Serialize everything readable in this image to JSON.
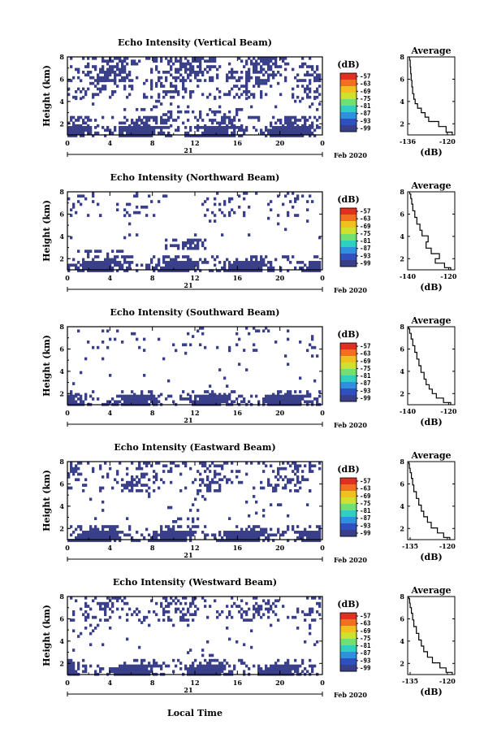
{
  "figure": {
    "xlabel": "Local Time",
    "colorbar_unit": "(dB)",
    "colorbar_ticks": [
      "-57",
      "-63",
      "-69",
      "-75",
      "-81",
      "-87",
      "-93",
      "-99"
    ],
    "colorbar_colors": [
      "#e03020",
      "#f07020",
      "#f0c020",
      "#d0e030",
      "#70e070",
      "#30d0c0",
      "#3090e0",
      "#3050c0",
      "#3a3f8a"
    ],
    "date_text": "Feb 2020",
    "day_label": "21",
    "profile_title": "Average",
    "profile_xlabel": "(dB)",
    "echo_color": "#3a3f8a"
  },
  "chart_data": [
    {
      "type": "heatmap",
      "title": "Echo Intensity (Vertical Beam)",
      "ylabel": "Height (km)",
      "xlim": [
        0,
        24
      ],
      "ylim": [
        1,
        8
      ],
      "xticks": [
        "0",
        "4",
        "8",
        "12",
        "16",
        "20",
        "0"
      ],
      "yticks": [
        "2",
        "4",
        "6",
        "8"
      ],
      "layers": [
        {
          "h0": 1.0,
          "h1": 1.8,
          "fill": 0.93
        },
        {
          "h0": 1.8,
          "h1": 2.2,
          "fill": 0.45
        },
        {
          "h0": 2.4,
          "h1": 2.7,
          "fill": 0.55,
          "t0": 0,
          "t1": 24
        },
        {
          "h0": 2.7,
          "h1": 3.2,
          "fill": 0.45,
          "t0": 9,
          "t1": 16
        },
        {
          "h0": 3.2,
          "h1": 4.4,
          "fill": 0.08
        },
        {
          "h0": 4.4,
          "h1": 6.0,
          "fill": 0.3
        },
        {
          "h0": 6.0,
          "h1": 8.0,
          "fill": 0.55
        }
      ],
      "profile": {
        "xlim": [
          -136,
          -117
        ],
        "xticks": [
          "-136",
          "-120"
        ],
        "yticks": [
          "2",
          "4",
          "6",
          "8"
        ],
        "x": [
          -118.0,
          -120.5,
          -123.5,
          -127.5,
          -129.0,
          -130.5,
          -132.0,
          -133.0,
          -133.5,
          -134.0,
          -134.3,
          -134.6,
          -134.8,
          -135.0,
          -135.2
        ],
        "y": [
          1.0,
          1.5,
          2.0,
          2.4,
          2.8,
          3.2,
          3.6,
          4.0,
          4.4,
          5.0,
          5.6,
          6.2,
          6.8,
          7.4,
          8.0
        ]
      }
    },
    {
      "type": "heatmap",
      "title": "Echo Intensity (Northward Beam)",
      "ylabel": "Height (km)",
      "xlim": [
        0,
        24
      ],
      "ylim": [
        1,
        8
      ],
      "xticks": [
        "0",
        "4",
        "8",
        "12",
        "16",
        "20",
        "0"
      ],
      "yticks": [
        "2",
        "4",
        "6",
        "8"
      ],
      "layers": [
        {
          "h0": 1.0,
          "h1": 1.8,
          "fill": 0.9
        },
        {
          "h0": 1.8,
          "h1": 2.3,
          "fill": 0.4
        },
        {
          "h0": 2.5,
          "h1": 2.8,
          "fill": 0.3,
          "t0": 0,
          "t1": 8
        },
        {
          "h0": 3.0,
          "h1": 3.8,
          "fill": 0.45,
          "t0": 9,
          "t1": 13
        },
        {
          "h0": 3.8,
          "h1": 6.0,
          "fill": 0.04
        },
        {
          "h0": 6.0,
          "h1": 8.0,
          "fill": 0.12
        }
      ],
      "profile": {
        "xlim": [
          -140,
          -117
        ],
        "xticks": [
          "-140",
          "-120"
        ],
        "yticks": [
          "2",
          "4",
          "6",
          "8"
        ],
        "x": [
          -119.0,
          -122.0,
          -126.5,
          -124.5,
          -128.5,
          -131.0,
          -130.0,
          -133.0,
          -134.0,
          -135.5,
          -136.5,
          -137.5,
          -138.0,
          -138.5,
          -139.0
        ],
        "y": [
          1.0,
          1.4,
          1.8,
          2.2,
          2.7,
          3.2,
          3.8,
          4.3,
          4.8,
          5.4,
          6.0,
          6.6,
          7.2,
          7.6,
          8.0
        ]
      }
    },
    {
      "type": "heatmap",
      "title": "Echo Intensity (Southward Beam)",
      "ylabel": "Height (km)",
      "xlim": [
        0,
        24
      ],
      "ylim": [
        1,
        8
      ],
      "xticks": [
        "0",
        "4",
        "8",
        "12",
        "16",
        "20",
        "0"
      ],
      "yticks": [
        "2",
        "4",
        "6",
        "8"
      ],
      "layers": [
        {
          "h0": 1.0,
          "h1": 1.9,
          "fill": 0.9
        },
        {
          "h0": 1.9,
          "h1": 2.3,
          "fill": 0.3
        },
        {
          "h0": 2.5,
          "h1": 2.8,
          "fill": 0.2,
          "t0": 13,
          "t1": 15
        },
        {
          "h0": 2.8,
          "h1": 6.0,
          "fill": 0.02
        },
        {
          "h0": 6.0,
          "h1": 8.0,
          "fill": 0.08
        }
      ],
      "profile": {
        "xlim": [
          -140,
          -117
        ],
        "xticks": [
          "-140",
          "-120"
        ],
        "yticks": [
          "2",
          "4",
          "6",
          "8"
        ],
        "x": [
          -119.0,
          -122.5,
          -126.0,
          -128.0,
          -129.5,
          -131.0,
          -132.0,
          -133.5,
          -134.5,
          -135.5,
          -136.5,
          -137.5,
          -138.3,
          -139.0,
          -139.5
        ],
        "y": [
          1.0,
          1.4,
          1.8,
          2.2,
          2.6,
          3.0,
          3.6,
          4.2,
          4.8,
          5.4,
          6.0,
          6.6,
          7.2,
          7.6,
          8.0
        ]
      }
    },
    {
      "type": "heatmap",
      "title": "Echo Intensity (Eastward Beam)",
      "ylabel": "Height (km)",
      "xlim": [
        0,
        24
      ],
      "ylim": [
        1,
        8
      ],
      "xticks": [
        "0",
        "4",
        "8",
        "12",
        "16",
        "20",
        "0"
      ],
      "yticks": [
        "2",
        "4",
        "6",
        "8"
      ],
      "layers": [
        {
          "h0": 1.0,
          "h1": 1.8,
          "fill": 0.92
        },
        {
          "h0": 1.8,
          "h1": 2.3,
          "fill": 0.4
        },
        {
          "h0": 2.6,
          "h1": 3.0,
          "fill": 0.3,
          "t0": 9,
          "t1": 14
        },
        {
          "h0": 3.0,
          "h1": 5.5,
          "fill": 0.05
        },
        {
          "h0": 5.5,
          "h1": 8.0,
          "fill": 0.3
        }
      ],
      "profile": {
        "xlim": [
          -136,
          -117
        ],
        "xticks": [
          "-135",
          "-120"
        ],
        "yticks": [
          "2",
          "4",
          "6",
          "8"
        ],
        "x": [
          -119.0,
          -121.5,
          -124.0,
          -126.5,
          -128.0,
          -129.5,
          -130.5,
          -131.5,
          -132.5,
          -133.5,
          -134.0,
          -134.5,
          -135.0,
          -135.3,
          -135.5
        ],
        "y": [
          1.0,
          1.4,
          1.8,
          2.3,
          2.8,
          3.3,
          3.8,
          4.4,
          5.0,
          5.6,
          6.2,
          6.8,
          7.2,
          7.6,
          8.0
        ]
      }
    },
    {
      "type": "heatmap",
      "title": "Echo Intensity (Westward Beam)",
      "ylabel": "Height (km)",
      "xlim": [
        0,
        24
      ],
      "ylim": [
        1,
        8
      ],
      "xticks": [
        "0",
        "4",
        "8",
        "12",
        "16",
        "20",
        "0"
      ],
      "yticks": [
        "2",
        "4",
        "6",
        "8"
      ],
      "layers": [
        {
          "h0": 1.0,
          "h1": 1.9,
          "fill": 0.92
        },
        {
          "h0": 1.9,
          "h1": 2.4,
          "fill": 0.3
        },
        {
          "h0": 2.8,
          "h1": 3.1,
          "fill": 0.25,
          "t0": 11,
          "t1": 14
        },
        {
          "h0": 3.1,
          "h1": 5.8,
          "fill": 0.04
        },
        {
          "h0": 5.8,
          "h1": 8.0,
          "fill": 0.35
        }
      ],
      "profile": {
        "xlim": [
          -136,
          -117
        ],
        "xticks": [
          "-135",
          "-120"
        ],
        "yticks": [
          "2",
          "4",
          "6",
          "8"
        ],
        "x": [
          -118.0,
          -120.5,
          -123.0,
          -126.0,
          -128.0,
          -129.5,
          -130.5,
          -131.5,
          -132.5,
          -133.5,
          -134.0,
          -134.5,
          -135.0,
          -135.2,
          -135.5
        ],
        "y": [
          1.0,
          1.4,
          1.8,
          2.3,
          2.8,
          3.3,
          3.8,
          4.4,
          5.0,
          5.6,
          6.2,
          6.8,
          7.2,
          7.6,
          8.0
        ]
      }
    }
  ]
}
